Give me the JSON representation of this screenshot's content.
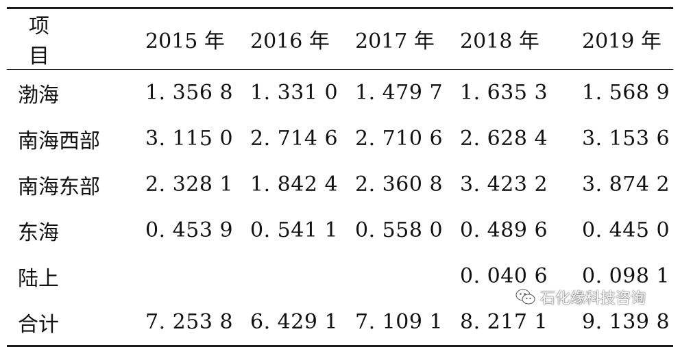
{
  "table": {
    "headers": [
      "项　目",
      "2015 年",
      "2016 年",
      "2017 年",
      "2018 年",
      "2019 年"
    ],
    "rows": [
      {
        "label": "渤海",
        "values": [
          "1. 356 8",
          "1. 331 0",
          "1. 479 7",
          "1. 635 3",
          "1. 568 9"
        ]
      },
      {
        "label": "南海西部",
        "values": [
          "3. 115 0",
          "2. 714 6",
          "2. 710 6",
          "2. 628 4",
          "3. 153 6"
        ]
      },
      {
        "label": "南海东部",
        "values": [
          "2. 328 1",
          "1. 842 4",
          "2. 360 8",
          "3. 423 2",
          "3. 874 2"
        ]
      },
      {
        "label": "东海",
        "values": [
          "0. 453 9",
          "0. 541 1",
          "0. 558 0",
          "0. 489 6",
          "0. 445 0"
        ]
      },
      {
        "label": "陆上",
        "values": [
          "",
          "",
          "",
          "0. 040 6",
          "0. 098 1"
        ]
      },
      {
        "label": "合计",
        "values": [
          "7. 253 8",
          "6. 429 1",
          "7. 109 1",
          "8. 217 1",
          "9. 139 8"
        ]
      }
    ]
  },
  "watermark": {
    "text": "石化缘科技咨询",
    "icon": "wechat-icon"
  }
}
